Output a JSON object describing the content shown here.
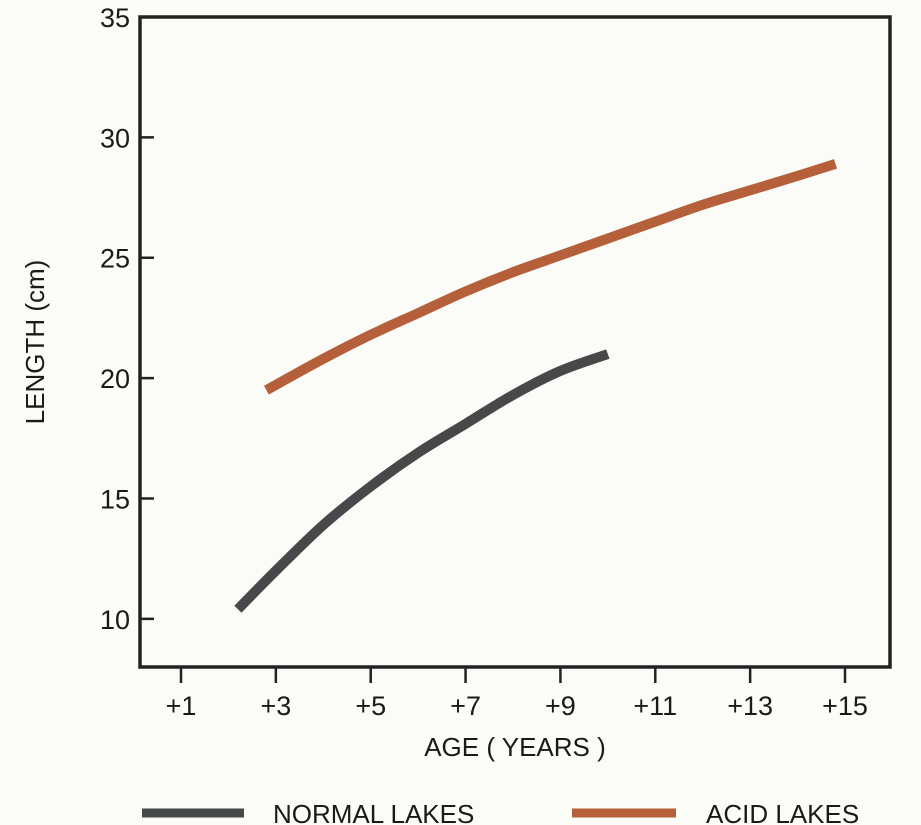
{
  "chart_data": {
    "type": "line",
    "title": "",
    "xlabel": "AGE ( YEARS )",
    "ylabel": "LENGTH (cm)",
    "xlim": [
      0,
      16
    ],
    "ylim": [
      8,
      35
    ],
    "x_ticks": [
      {
        "value": 1,
        "label": "+1"
      },
      {
        "value": 3,
        "label": "+3"
      },
      {
        "value": 5,
        "label": "+5"
      },
      {
        "value": 7,
        "label": "+7"
      },
      {
        "value": 9,
        "label": "+9"
      },
      {
        "value": 11,
        "label": "+11"
      },
      {
        "value": 13,
        "label": "+13"
      },
      {
        "value": 15,
        "label": "+15"
      }
    ],
    "y_ticks": [
      {
        "value": 10,
        "label": "10"
      },
      {
        "value": 15,
        "label": "15"
      },
      {
        "value": 20,
        "label": "20"
      },
      {
        "value": 25,
        "label": "25"
      },
      {
        "value": 30,
        "label": "30"
      },
      {
        "value": 35,
        "label": "35"
      }
    ],
    "grid": false,
    "legend_position": "bottom",
    "series": [
      {
        "name": "NORMAL LAKES",
        "color": "#46484a",
        "x": [
          2.2,
          3,
          4,
          5,
          6,
          7,
          8,
          9,
          10
        ],
        "y": [
          10.4,
          12.0,
          13.9,
          15.5,
          16.9,
          18.1,
          19.3,
          20.3,
          21.0
        ]
      },
      {
        "name": "ACID LAKES",
        "color": "#b5603a",
        "x": [
          2.8,
          4,
          5,
          6,
          7,
          8,
          9,
          10,
          11,
          12,
          13,
          14,
          14.8
        ],
        "y": [
          19.5,
          20.8,
          21.8,
          22.7,
          23.6,
          24.4,
          25.1,
          25.8,
          26.5,
          27.2,
          27.8,
          28.4,
          28.9
        ]
      }
    ]
  }
}
